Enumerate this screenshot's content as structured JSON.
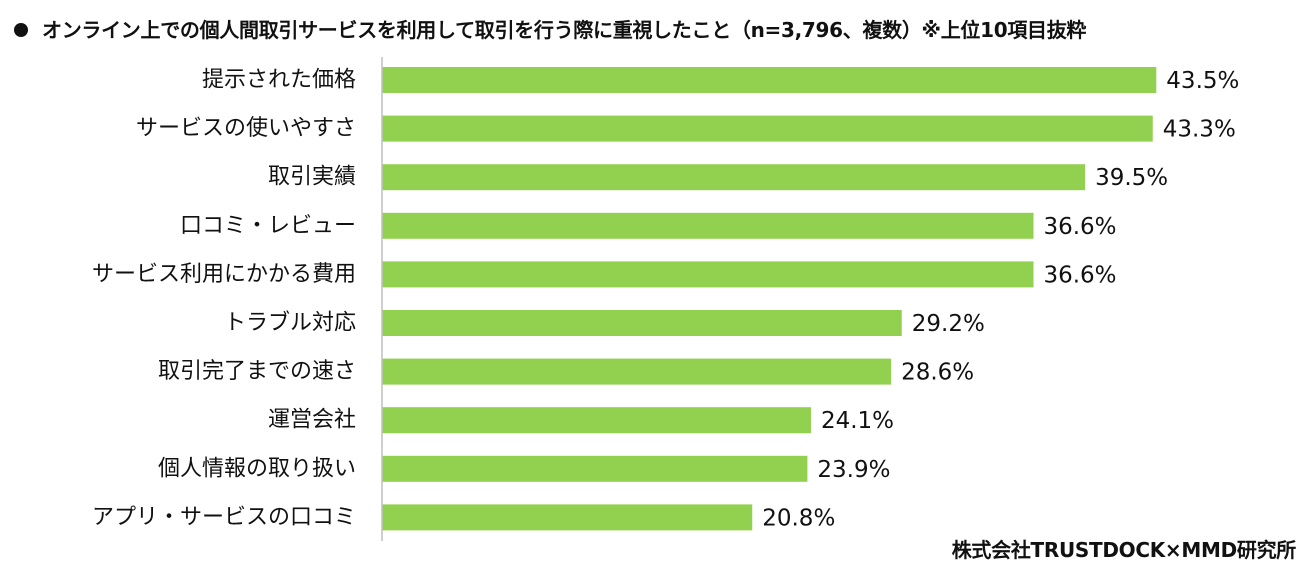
{
  "chart_data": {
    "type": "bar",
    "orientation": "horizontal",
    "title": "オンライン上での個人間取引サービスを利用して取引を行う際に重視したこと（n=3,796、複数）※上位10項目抜粋",
    "categories": [
      "提示された価格",
      "サービスの使いやすさ",
      "取引実績",
      "口コミ・レビュー",
      "サービス利用にかかる費用",
      "トラブル対応",
      "取引完了までの速さ",
      "運営会社",
      "個人情報の取り扱い",
      "アプリ・サービスの口コミ"
    ],
    "values": [
      43.5,
      43.3,
      39.5,
      36.6,
      36.6,
      29.2,
      28.6,
      24.1,
      23.9,
      20.8
    ],
    "value_labels": [
      "43.5%",
      "43.3%",
      "39.5%",
      "36.6%",
      "36.6%",
      "29.2%",
      "28.6%",
      "24.1%",
      "23.9%",
      "20.8%"
    ],
    "xlim": [
      0,
      50
    ],
    "grid": false,
    "bar_color": "#92d050",
    "axis_color": "#bfbfbf",
    "text_color": "#111111"
  },
  "credit": "株式会社TRUSTDOCK×MMD研究所"
}
